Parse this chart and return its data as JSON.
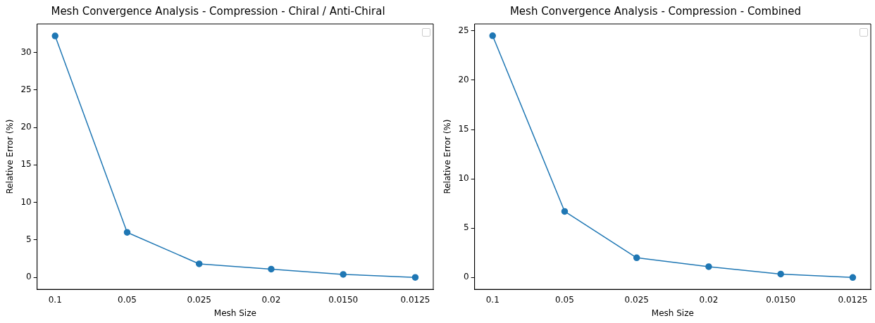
{
  "chart_data": [
    {
      "type": "line",
      "title": "Mesh Convergence Analysis - Compression - Chiral / Anti-Chiral",
      "xlabel": "Mesh Size",
      "ylabel": "Relative Error (%)",
      "categories": [
        "0.1",
        "0.05",
        "0.025",
        "0.02",
        "0.0150",
        "0.0125"
      ],
      "series": [
        {
          "color": "#1f77b4",
          "values": [
            32.2,
            6.0,
            1.8,
            1.1,
            0.4,
            0.0
          ]
        }
      ],
      "ylim": [
        -1.6,
        33.8
      ],
      "yticks": [
        0,
        5,
        10,
        15,
        20,
        25,
        30
      ],
      "marker": "circle",
      "grid": false
    },
    {
      "type": "line",
      "title": "Mesh Convergence Analysis - Compression - Combined",
      "xlabel": "Mesh Size",
      "ylabel": "Relative Error (%)",
      "categories": [
        "0.1",
        "0.05",
        "0.025",
        "0.02",
        "0.0150",
        "0.0125"
      ],
      "series": [
        {
          "color": "#1f77b4",
          "values": [
            24.5,
            6.7,
            2.0,
            1.1,
            0.35,
            0.0
          ]
        }
      ],
      "ylim": [
        -1.2,
        25.7
      ],
      "yticks": [
        0,
        5,
        10,
        15,
        20,
        25
      ],
      "marker": "circle",
      "grid": false
    }
  ]
}
